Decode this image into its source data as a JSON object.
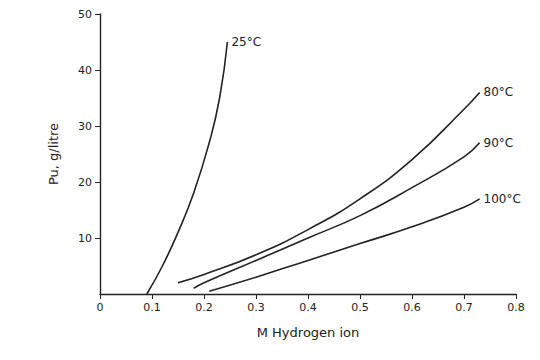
{
  "chart_data": {
    "type": "line",
    "x_label": "M Hydrogen ion",
    "y_label": "Pu, g/litre",
    "xlim": [
      0,
      0.8
    ],
    "xticks": [
      0,
      0.1,
      0.2,
      0.3,
      0.4,
      0.5,
      0.6,
      0.7,
      0.8
    ],
    "ylim": [
      0,
      50
    ],
    "yticks": [
      10,
      20,
      30,
      40,
      50
    ],
    "grid": false,
    "marker": "none",
    "line_style": "solid",
    "series": [
      {
        "name": "25°C",
        "color": "#222222",
        "x": [
          0.09,
          0.12,
          0.15,
          0.18,
          0.21,
          0.23,
          0.245
        ],
        "values": [
          0,
          5,
          11,
          18,
          27,
          35,
          45
        ]
      },
      {
        "name": "80°C",
        "color": "#222222",
        "x": [
          0.15,
          0.2,
          0.3,
          0.4,
          0.5,
          0.6,
          0.7,
          0.73
        ],
        "values": [
          2,
          3.5,
          7,
          11.5,
          17,
          24,
          33,
          36
        ]
      },
      {
        "name": "90°C",
        "color": "#222222",
        "x": [
          0.18,
          0.2,
          0.3,
          0.4,
          0.5,
          0.6,
          0.7,
          0.73
        ],
        "values": [
          1,
          2,
          6,
          10,
          14,
          19,
          24.5,
          27
        ]
      },
      {
        "name": "100°C",
        "color": "#222222",
        "x": [
          0.21,
          0.3,
          0.4,
          0.5,
          0.6,
          0.7,
          0.73
        ],
        "values": [
          0.5,
          3,
          6,
          9,
          12,
          15.5,
          17
        ]
      }
    ]
  }
}
